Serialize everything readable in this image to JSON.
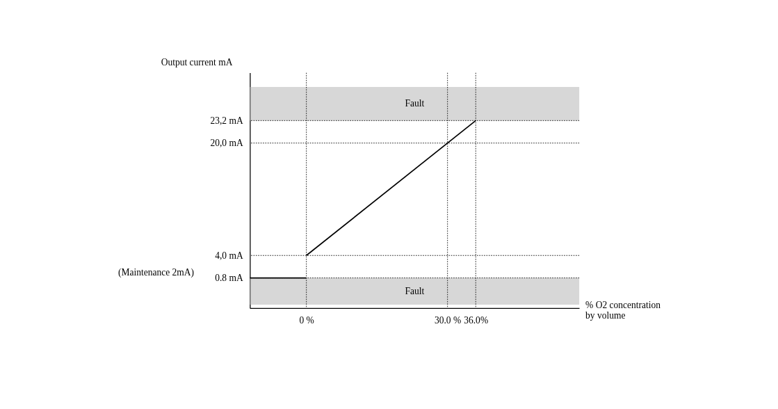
{
  "chart_data": {
    "type": "line",
    "series": [
      {
        "x": [
          0,
          36
        ],
        "values": [
          4.0,
          23.2
        ],
        "color": "#000000"
      },
      {
        "x": [
          -12,
          0
        ],
        "values": [
          0.8,
          0.8
        ],
        "color": "#000000"
      }
    ],
    "xlabel": "% O2 concentration by volume",
    "ylabel": "Output current mA",
    "xlim": [
      -12,
      58
    ],
    "ylim": [
      -3.5,
      30
    ],
    "xticks": [
      {
        "value": 0,
        "label": "0 %"
      },
      {
        "value": 30,
        "label": "30.0 %"
      },
      {
        "value": 36,
        "label": "36.0%"
      }
    ],
    "yticks": [
      {
        "value": 0.8,
        "label": "0.8 mA"
      },
      {
        "value": 4.0,
        "label": "4,0 mA"
      },
      {
        "value": 20.0,
        "label": "20,0 mA"
      },
      {
        "value": 23.2,
        "label": "23,2 mA"
      }
    ],
    "ref_lines": [
      {
        "axis": "y",
        "value": 23.2,
        "line_style": "dotted",
        "color": "#000000"
      },
      {
        "axis": "y",
        "value": 20.0,
        "line_style": "dotted",
        "color": "#000000"
      },
      {
        "axis": "y",
        "value": 4.0,
        "line_style": "dotted",
        "color": "#000000"
      },
      {
        "axis": "y",
        "value": 0.8,
        "line_style": "dotted",
        "color": "#000000"
      },
      {
        "axis": "x",
        "value": 0,
        "line_style": "dotted",
        "color": "#000000"
      },
      {
        "axis": "x",
        "value": 30,
        "line_style": "dotted",
        "color": "#000000"
      },
      {
        "axis": "x",
        "value": 36,
        "line_style": "dotted",
        "color": "#000000"
      }
    ],
    "bands": [
      {
        "axis": "y",
        "from": 23.2,
        "to": 28,
        "label": "Fault",
        "color": "#bdbdbd"
      },
      {
        "axis": "y",
        "from": -3,
        "to": 0.8,
        "label": "Fault",
        "color": "#bdbdbd"
      }
    ],
    "annotations": [
      "(Maintenance 2mA)"
    ],
    "grid": false,
    "marker": "none",
    "line_style": "solid"
  }
}
